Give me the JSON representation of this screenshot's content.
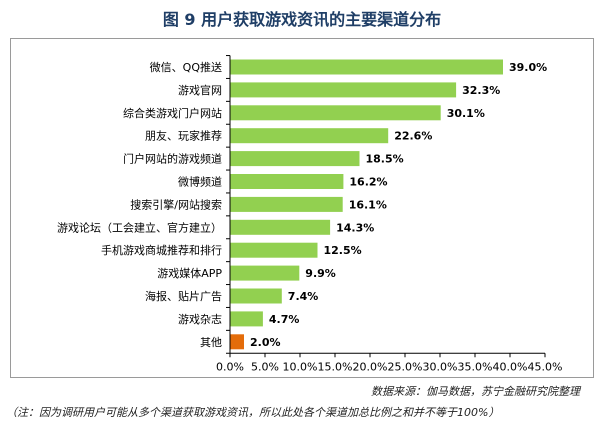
{
  "figure_title": "图 9 用户获取游戏资讯的主要渠道分布",
  "source_text": "数据来源：伽马数据，苏宁金融研究院整理",
  "note_text": "（注：因为调研用户可能从多个渠道获取游戏资讯，所以此处各个渠道加总比例之和并不等于100%）",
  "colors": {
    "bar": "#92d050",
    "highlight_bar": "#e46c0a",
    "axis": "#000000"
  },
  "chart_data": {
    "type": "bar",
    "orientation": "horizontal",
    "title": "图 9 用户获取游戏资讯的主要渠道分布",
    "xlabel": "",
    "ylabel": "",
    "xlim": [
      0,
      45
    ],
    "x_ticks": [
      0,
      5,
      10,
      15,
      20,
      25,
      30,
      35,
      40,
      45
    ],
    "x_tick_labels": [
      "0.0%",
      "5.0%",
      "10.0%",
      "15.0%",
      "20.0%",
      "25.0%",
      "30.0%",
      "35.0%",
      "40.0%",
      "45.0%"
    ],
    "grid": false,
    "categories": [
      "微信、QQ推送",
      "游戏官网",
      "综合类游戏门户网站",
      "朋友、玩家推荐",
      "门户网站的游戏频道",
      "微博频道",
      "搜索引擎/网站搜索",
      "游戏论坛（工会建立、官方建立）",
      "手机游戏商城推荐和排行",
      "游戏媒体APP",
      "海报、贴片广告",
      "游戏杂志",
      "其他"
    ],
    "values": [
      39.0,
      32.3,
      30.1,
      22.6,
      18.5,
      16.2,
      16.1,
      14.3,
      12.5,
      9.9,
      7.4,
      4.7,
      2.0
    ],
    "value_labels": [
      "39.0%",
      "32.3%",
      "30.1%",
      "22.6%",
      "18.5%",
      "16.2%",
      "16.1%",
      "14.3%",
      "12.5%",
      "9.9%",
      "7.4%",
      "4.7%",
      "2.0%"
    ],
    "highlight_category": "其他"
  }
}
